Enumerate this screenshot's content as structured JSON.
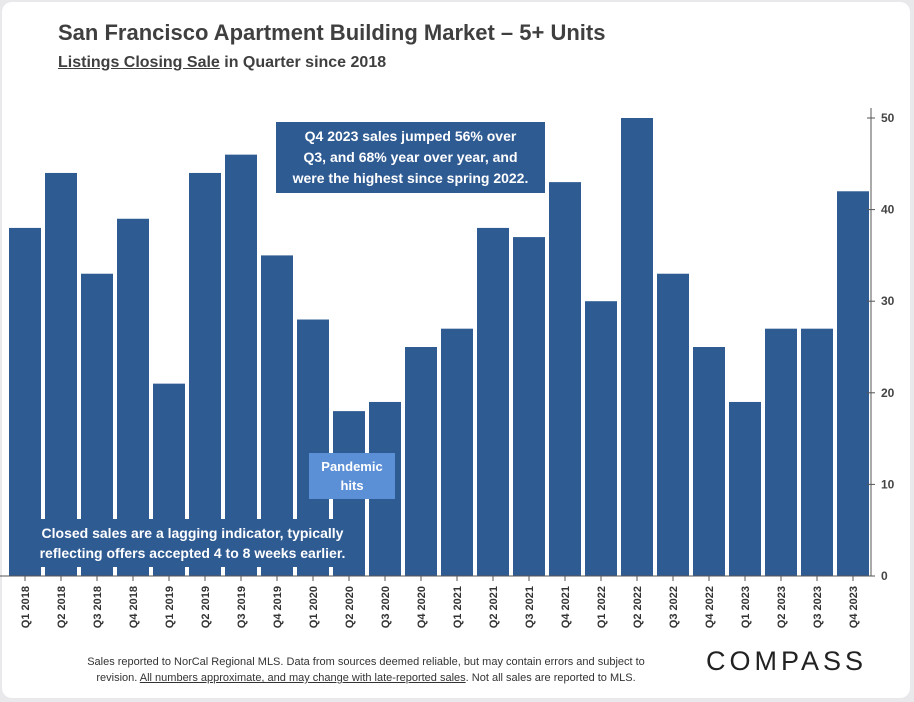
{
  "title": "San Francisco Apartment Building Market – 5+ Units",
  "subtitle": {
    "part1": "Listings Closing Sale",
    "part2": " in Quarter since 2018"
  },
  "colors": {
    "bar": "#2f5b93",
    "callout": "#2f5b93",
    "pandemic_callout": "#5b8fd6",
    "axis": "#555555"
  },
  "chart_data": {
    "type": "bar",
    "title": "San Francisco Apartment Building Market – 5+ Units",
    "subtitle": "Listings Closing Sale in Quarter since 2018",
    "xlabel": "",
    "ylabel": "",
    "ylim": [
      0,
      50
    ],
    "yticks": [
      0,
      10,
      20,
      30,
      40,
      50
    ],
    "y_axis_side": "right",
    "grid": false,
    "categories": [
      "Q1 2018",
      "Q2 2018",
      "Q3 2018",
      "Q4 2018",
      "Q1 2019",
      "Q2 2019",
      "Q3 2019",
      "Q4 2019",
      "Q1 2020",
      "Q2 2020",
      "Q3 2020",
      "Q4 2020",
      "Q1 2021",
      "Q2 2021",
      "Q3 2021",
      "Q4 2021",
      "Q1 2022",
      "Q2 2022",
      "Q3 2022",
      "Q4 2022",
      "Q1 2023",
      "Q2 2023",
      "Q3 2023",
      "Q4 2023"
    ],
    "values": [
      38,
      44,
      33,
      39,
      21,
      44,
      46,
      35,
      28,
      18,
      19,
      25,
      27,
      38,
      37,
      43,
      30,
      50,
      33,
      25,
      19,
      27,
      27,
      42
    ]
  },
  "annotations": {
    "q4_jump": {
      "line1": "Q4 2023 sales jumped 56% over",
      "line2": "Q3, and 68% year over year, and",
      "line3": "were the highest since spring 2022."
    },
    "pandemic": {
      "line1": "Pandemic",
      "line2": "hits"
    },
    "lagging": {
      "line1": "Closed sales are a lagging indicator, typically",
      "line2": "reflecting offers accepted 4 to 8 weeks earlier."
    }
  },
  "footnote": {
    "line1": "Sales reported to NorCal Regional MLS. Data from sources deemed reliable, but may contain errors and subject to",
    "line2_a": "revision. ",
    "line2_u": "All numbers approximate, and may change with late-reported sales",
    "line2_b": ". Not all sales are reported to MLS."
  },
  "brand": "COMPASS"
}
